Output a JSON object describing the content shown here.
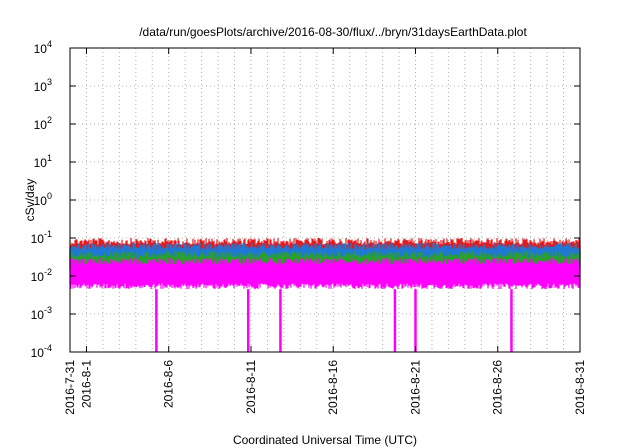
{
  "chart_data": {
    "type": "line",
    "title": "/data/run/goesPlots/archive/2016-08-30/flux/../bryn/31daysEarthData.plot",
    "xlabel": "Coordinated Universal Time (UTC)",
    "ylabel": "cSv/day",
    "xlim": [
      "2016-07-31",
      "2016-08-31"
    ],
    "x_ticks": [
      "2016-7-31",
      "2016-8-1",
      "2016-8-6",
      "2016-8-11",
      "2016-8-16",
      "2016-8-21",
      "2016-8-26",
      "2016-8-31"
    ],
    "y_scale": "log",
    "ylim": [
      0.0001,
      10000
    ],
    "y_ticks": [
      {
        "base": "10",
        "exp": "-4"
      },
      {
        "base": "10",
        "exp": "-3"
      },
      {
        "base": "10",
        "exp": "-2"
      },
      {
        "base": "10",
        "exp": "-1"
      },
      {
        "base": "10",
        "exp": "0"
      },
      {
        "base": "10",
        "exp": "1"
      },
      {
        "base": "10",
        "exp": "2"
      },
      {
        "base": "10",
        "exp": "3"
      },
      {
        "base": "10",
        "exp": "4"
      }
    ],
    "grid": true,
    "series": [
      {
        "color": "#e41a1c",
        "low": 0.02,
        "high": 0.1
      },
      {
        "color": "#1f78d4",
        "low": 0.015,
        "high": 0.075
      },
      {
        "color": "#2ca02c",
        "low": 0.01,
        "high": 0.045
      },
      {
        "color": "#ff00ff",
        "low": 0.0045,
        "high": 0.03
      }
    ],
    "dropouts": [
      {
        "series": 3,
        "x": "2016-08-05T06:00",
        "value": 0.0001
      },
      {
        "series": 3,
        "x": "2016-08-10T20:00",
        "value": 0.0001
      },
      {
        "series": 3,
        "x": "2016-08-12T19:00",
        "value": 0.0001
      },
      {
        "series": 3,
        "x": "2016-08-19T18:00",
        "value": 0.0001
      },
      {
        "series": 3,
        "x": "2016-08-21T00:00",
        "value": 0.0001
      },
      {
        "series": 3,
        "x": "2016-08-26T20:00",
        "value": 0.0001
      }
    ]
  }
}
